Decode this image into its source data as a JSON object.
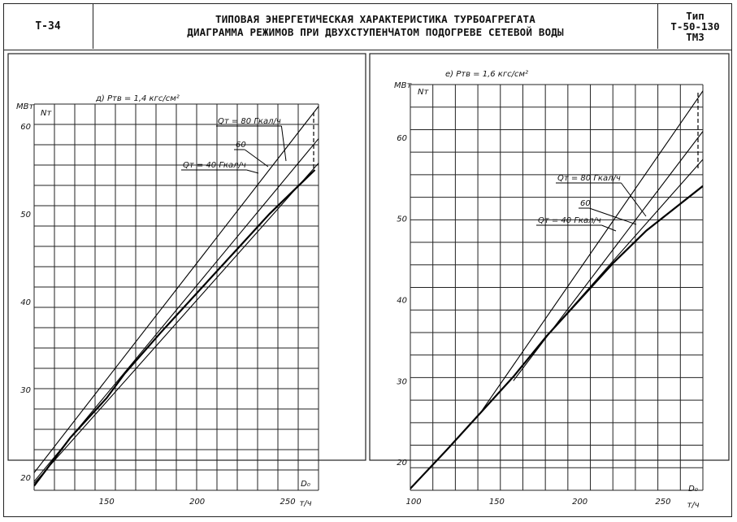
{
  "header": {
    "code": "Т-34",
    "title_line1": "ТИПОВАЯ ЭНЕРГЕТИЧЕСКАЯ ХАРАКТЕРИСТИКА ТУРБОАГРЕГАТА",
    "title_line2": "ДИАГРАММА РЕЖИМОВ ПРИ ДВУХСТУПЕНЧАТОМ ПОДОГРЕВЕ СЕТЕВОЙ ВОДЫ",
    "type_label": "Тип",
    "type_model": "Т-50-130",
    "type_plant": "ТМЗ"
  },
  "chart_data": [
    {
      "type": "line",
      "title": "д) Pтв = 1,4 кгс/см²",
      "ylabel": "МВт",
      "ysymbol": "Nт",
      "xsymbol": "D₀",
      "xunit": "т/ч",
      "xlim": [
        110,
        267
      ],
      "ylim": [
        18.5,
        62.5
      ],
      "xticks": [
        150,
        200,
        250
      ],
      "yticks": [
        20,
        30,
        40,
        50,
        60
      ],
      "series": [
        {
          "name": "Qт = 80 Гкал/ч",
          "x": [
            110,
            268
          ],
          "y": [
            20.5,
            62.5
          ]
        },
        {
          "name": "60",
          "x": [
            110,
            268
          ],
          "y": [
            19.5,
            58.8
          ]
        },
        {
          "name": "Qт = 40 Гкал/ч",
          "x": [
            110,
            268
          ],
          "y": [
            19.3,
            56.0
          ]
        },
        {
          "name": "",
          "x": [
            110,
            130,
            150,
            160,
            180,
            200,
            220,
            240,
            265
          ],
          "y": [
            19.0,
            24.5,
            29.0,
            31.8,
            36.5,
            41.0,
            45.5,
            50.0,
            55.0
          ],
          "bold": true
        }
      ],
      "annotations": [
        "Qт = 80 Гкал/ч",
        "60",
        "Qт = 40 Гкал/ч"
      ]
    },
    {
      "type": "line",
      "title": "е) Pтв = 1,6 кгс/см²",
      "ylabel": "МВт",
      "ysymbol": "Nт",
      "xsymbol": "D₀",
      "xunit": "т/ч",
      "xlim": [
        98,
        274
      ],
      "ylim": [
        16.5,
        66.5
      ],
      "xticks": [
        100,
        150,
        200,
        250
      ],
      "yticks": [
        20,
        30,
        40,
        50,
        60
      ],
      "series": [
        {
          "name": "Qт = 80 Гкал/ч",
          "x": [
            140,
            275
          ],
          "y": [
            26.0,
            66.0
          ]
        },
        {
          "name": "60",
          "x": [
            160,
            275
          ],
          "y": [
            30.0,
            61.0
          ]
        },
        {
          "name": "Qт = 40 Гкал/ч",
          "x": [
            180,
            275
          ],
          "y": [
            35.5,
            57.5
          ]
        },
        {
          "name": "",
          "x": [
            97,
            120,
            140,
            160,
            180,
            200,
            220,
            240,
            274
          ],
          "y": [
            16.5,
            21.5,
            26.0,
            30.5,
            35.5,
            40.0,
            44.5,
            48.5,
            54.0
          ],
          "bold": true
        }
      ],
      "annotations": [
        "Qт = 80 Гкал/ч",
        "60",
        "Qт = 40 Гкал/ч"
      ]
    }
  ]
}
